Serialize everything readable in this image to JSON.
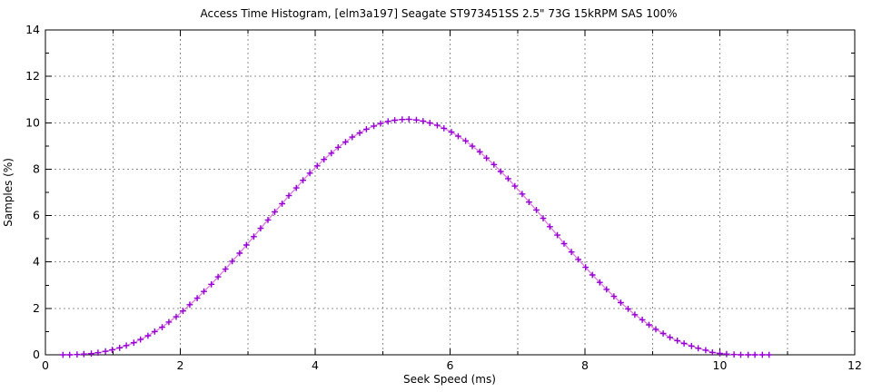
{
  "page": {
    "background": "#ffffff"
  },
  "chart_data": {
    "type": "line",
    "title": "Access Time Histogram, [elm3a197] Seagate ST973451SS 2.5\" 73G 15kRPM SAS 100%",
    "xlabel": "Seek Speed (ms)",
    "ylabel": "Samples (%)",
    "xlim": [
      0,
      12
    ],
    "ylim": [
      0,
      14
    ],
    "x_major_ticks": [
      0,
      2,
      4,
      6,
      8,
      10,
      12
    ],
    "x_minor_ticks": [
      1,
      3,
      5,
      7,
      9,
      11
    ],
    "y_major_ticks": [
      0,
      2,
      4,
      6,
      8,
      10,
      12,
      14
    ],
    "y_minor_ticks": [
      1,
      3,
      5,
      7,
      9,
      11,
      13
    ],
    "grid": {
      "x_lines": [
        1,
        2,
        3,
        4,
        5,
        6,
        7,
        8,
        9,
        10,
        11
      ],
      "y_lines": [
        2,
        4,
        6,
        8,
        10,
        12
      ],
      "style": "dotted",
      "color": "#909090"
    },
    "legend_position": "none",
    "series": [
      {
        "name": "access-time-samples",
        "style": "linespoints",
        "marker": "plus",
        "line_color": "#dd82dd",
        "marker_color": "#9400d3",
        "x": [
          0.26,
          0.36,
          0.47,
          0.57,
          0.68,
          0.78,
          0.89,
          0.99,
          1.1,
          1.2,
          1.31,
          1.41,
          1.52,
          1.62,
          1.73,
          1.83,
          1.94,
          2.04,
          2.14,
          2.25,
          2.35,
          2.46,
          2.56,
          2.67,
          2.77,
          2.88,
          2.98,
          3.09,
          3.19,
          3.3,
          3.4,
          3.51,
          3.61,
          3.72,
          3.82,
          3.92,
          4.03,
          4.13,
          4.24,
          4.34,
          4.45,
          4.55,
          4.66,
          4.76,
          4.87,
          4.97,
          5.08,
          5.18,
          5.29,
          5.39,
          5.5,
          5.6,
          5.7,
          5.81,
          5.91,
          6.02,
          6.12,
          6.23,
          6.33,
          6.44,
          6.54,
          6.65,
          6.75,
          6.86,
          6.96,
          7.07,
          7.17,
          7.28,
          7.38,
          7.48,
          7.59,
          7.69,
          7.8,
          7.9,
          8.01,
          8.11,
          8.22,
          8.32,
          8.43,
          8.53,
          8.64,
          8.74,
          8.85,
          8.95,
          9.05,
          9.16,
          9.26,
          9.37,
          9.47,
          9.58,
          9.68,
          9.79,
          9.89,
          10.0,
          10.1,
          10.21,
          10.31,
          10.42,
          10.52,
          10.63,
          10.73
        ],
        "y": [
          0.0,
          0.0,
          0.01,
          0.03,
          0.05,
          0.09,
          0.15,
          0.21,
          0.3,
          0.4,
          0.52,
          0.66,
          0.82,
          1.0,
          1.19,
          1.41,
          1.64,
          1.89,
          2.16,
          2.44,
          2.73,
          3.04,
          3.36,
          3.69,
          4.03,
          4.38,
          4.73,
          5.09,
          5.45,
          5.81,
          6.16,
          6.51,
          6.86,
          7.19,
          7.52,
          7.83,
          8.14,
          8.42,
          8.69,
          8.94,
          9.17,
          9.38,
          9.56,
          9.72,
          9.86,
          9.97,
          10.06,
          10.11,
          10.14,
          10.15,
          10.12,
          10.07,
          9.99,
          9.89,
          9.76,
          9.6,
          9.42,
          9.22,
          8.99,
          8.75,
          8.48,
          8.2,
          7.9,
          7.59,
          7.27,
          6.93,
          6.58,
          6.24,
          5.88,
          5.52,
          5.16,
          4.79,
          4.43,
          4.11,
          3.77,
          3.44,
          3.12,
          2.82,
          2.52,
          2.25,
          1.98,
          1.73,
          1.51,
          1.29,
          1.1,
          0.92,
          0.75,
          0.61,
          0.49,
          0.38,
          0.28,
          0.2,
          0.1,
          0.06,
          0.03,
          0.01,
          0.0,
          0.0,
          0.0,
          0.0,
          0.0
        ]
      }
    ]
  }
}
